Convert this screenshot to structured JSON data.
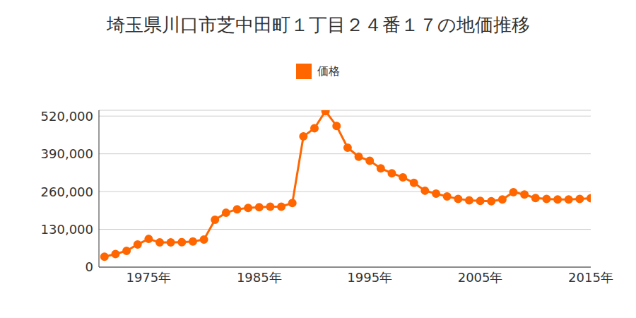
{
  "chart_data": {
    "type": "line",
    "title": "埼玉県川口市芝中田町１丁目２４番１７の地価推移",
    "x": [
      1971,
      1972,
      1973,
      1974,
      1975,
      1976,
      1977,
      1978,
      1979,
      1980,
      1981,
      1982,
      1983,
      1984,
      1985,
      1986,
      1987,
      1988,
      1989,
      1990,
      1991,
      1992,
      1993,
      1994,
      1995,
      1996,
      1997,
      1998,
      1999,
      2000,
      2001,
      2002,
      2003,
      2004,
      2005,
      2006,
      2007,
      2008,
      2009,
      2010,
      2011,
      2012,
      2013,
      2014,
      2015
    ],
    "series": [
      {
        "name": "価格",
        "color": "#ff6600",
        "marker": "circle",
        "values": [
          36000,
          45000,
          56000,
          78000,
          97000,
          85000,
          85000,
          86000,
          88000,
          95000,
          163000,
          187000,
          199000,
          204000,
          206000,
          208000,
          208000,
          221000,
          450000,
          478000,
          537000,
          486000,
          411000,
          380000,
          366000,
          340000,
          323000,
          309000,
          290000,
          263000,
          253000,
          243000,
          235000,
          230000,
          228000,
          227000,
          233000,
          258000,
          250000,
          238000,
          235000,
          233000,
          233000,
          235000,
          237000
        ]
      }
    ],
    "xlim": [
      1970.5,
      2015
    ],
    "xticks": [
      {
        "value": 1975,
        "label": "1975年"
      },
      {
        "value": 1985,
        "label": "1985年"
      },
      {
        "value": 1995,
        "label": "1995年"
      },
      {
        "value": 2005,
        "label": "2005年"
      },
      {
        "value": 2015,
        "label": "2015年"
      }
    ],
    "ylim": [
      0,
      540000
    ],
    "yticks": [
      0,
      {
        "value": 130000,
        "label": "130,000"
      },
      {
        "value": 260000,
        "label": "260,000"
      },
      {
        "value": 390000,
        "label": "390,000"
      },
      {
        "value": 520000,
        "label": "520,000"
      }
    ],
    "grid": true,
    "legend": "top"
  }
}
